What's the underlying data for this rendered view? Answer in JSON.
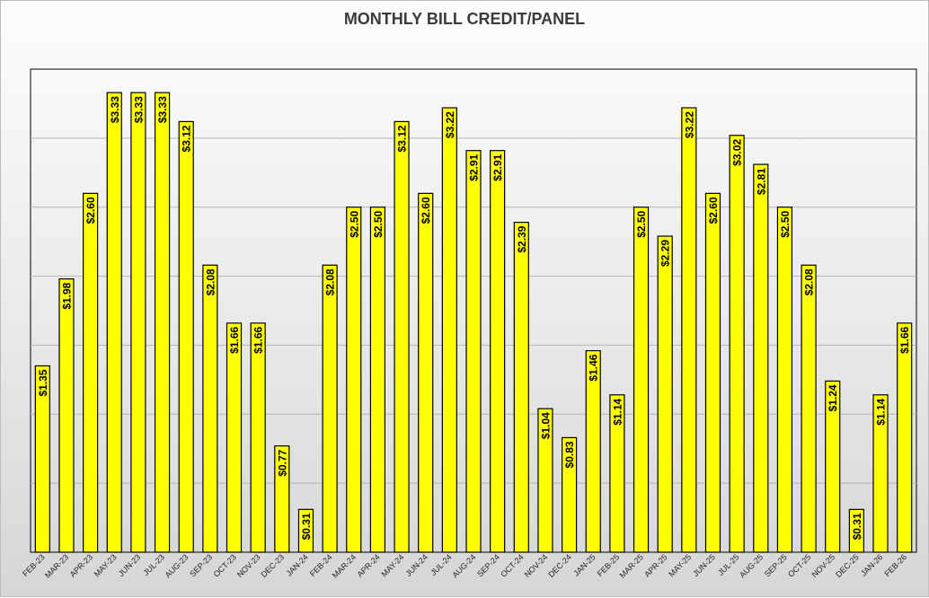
{
  "chart_data": {
    "type": "bar",
    "title": "MONTHLY BILL CREDIT/PANEL",
    "xlabel": "",
    "ylabel": "",
    "ylim": [
      0,
      3.5
    ],
    "grid": true,
    "legend": "none",
    "bar_color": "#ffff00",
    "bar_border_color": "#000000",
    "categories": [
      "FEB-23",
      "MAR-23",
      "APR-23",
      "MAY-23",
      "JUN-23",
      "JUL-23",
      "AUG-23",
      "SEP-23",
      "OCT-23",
      "NOV-23",
      "DEC-23",
      "JAN-24",
      "FEB-24",
      "MAR-24",
      "APR-24",
      "MAY-24",
      "JUN-24",
      "JUL-24",
      "AUG-24",
      "SEP-24",
      "OCT-24",
      "NOV-24",
      "DEC-24",
      "JAN-25",
      "FEB-25",
      "MAR-25",
      "APR-25",
      "MAY-25",
      "JUN-25",
      "JUL-25",
      "AUG-25",
      "SEP-25",
      "OCT-25",
      "NOV-25",
      "DEC-25",
      "JAN-26",
      "FEB-26"
    ],
    "values": [
      1.35,
      1.98,
      2.6,
      3.33,
      3.33,
      3.33,
      3.12,
      2.08,
      1.66,
      1.66,
      0.77,
      0.31,
      2.08,
      2.5,
      2.5,
      3.12,
      2.6,
      3.22,
      2.91,
      2.91,
      2.39,
      1.04,
      0.83,
      1.46,
      1.14,
      2.5,
      2.29,
      3.22,
      2.6,
      3.02,
      2.81,
      2.5,
      2.08,
      1.24,
      0.31,
      1.14,
      1.66
    ],
    "data_labels": [
      "$1.35",
      "$1.98",
      "$2.60",
      "$3.33",
      "$3.33",
      "$3.33",
      "$3.12",
      "$2.08",
      "$1.66",
      "$1.66",
      "$0.77",
      "$0.31",
      "$2.08",
      "$2.50",
      "$2.50",
      "$3.12",
      "$2.60",
      "$3.22",
      "$2.91",
      "$2.91",
      "$2.39",
      "$1.04",
      "$0.83",
      "$1.46",
      "$1.14",
      "$2.50",
      "$2.29",
      "$3.22",
      "$2.60",
      "$3.02",
      "$2.81",
      "$2.50",
      "$2.08",
      "$1.24",
      "$0.31",
      "$1.14",
      "$1.66"
    ]
  }
}
